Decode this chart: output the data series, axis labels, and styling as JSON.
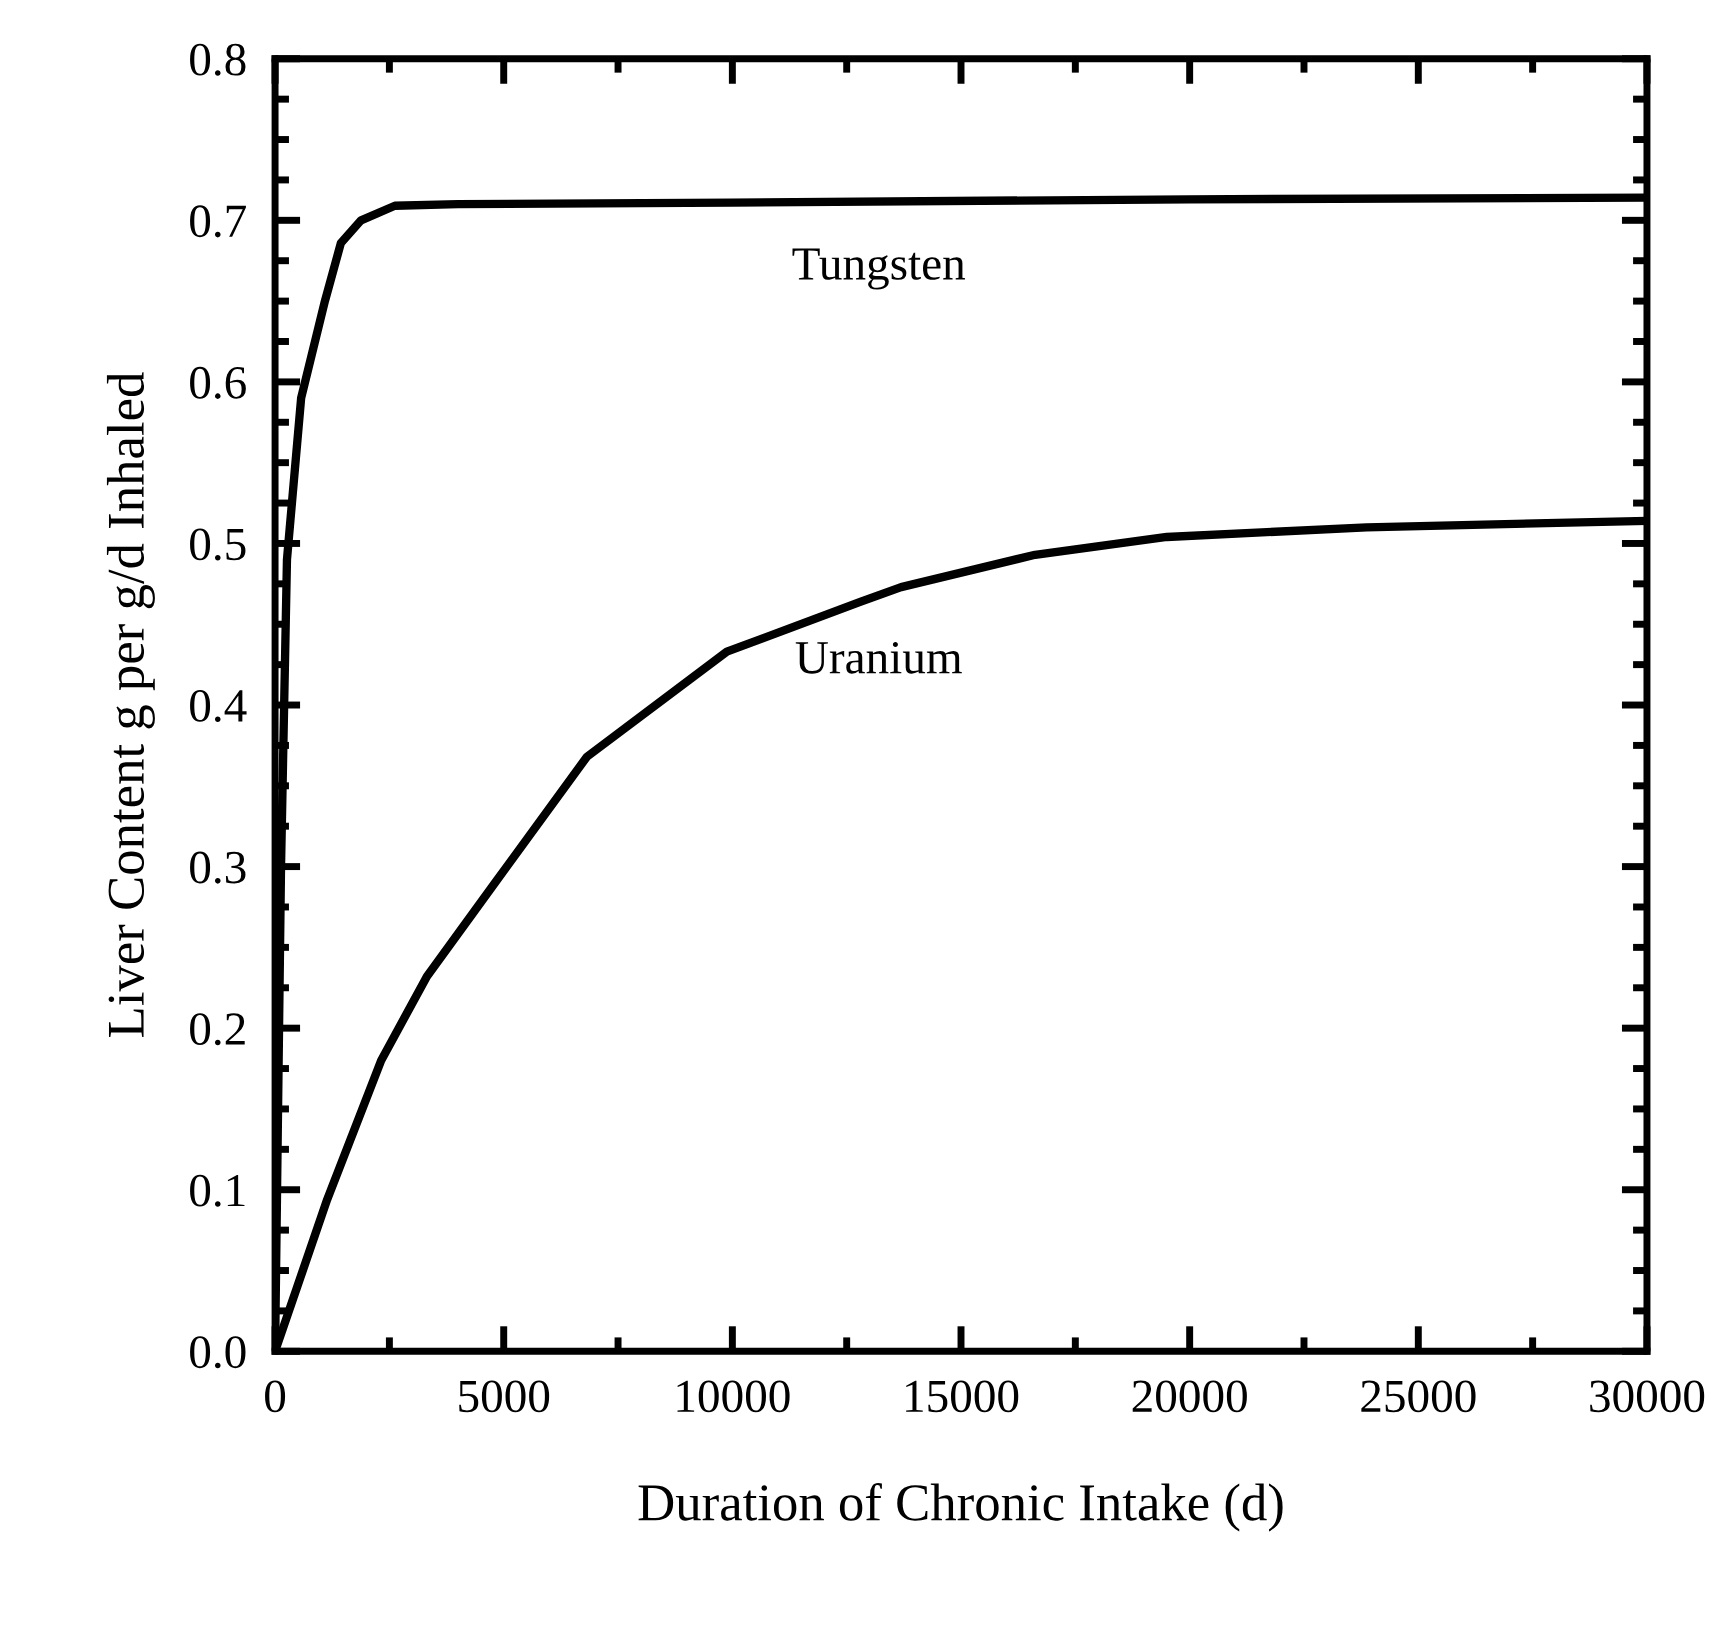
{
  "chart_data": {
    "type": "line",
    "xlabel": "Duration of Chronic Intake (d)",
    "ylabel": "Liver Content g per g/d Inhaled",
    "xlim": [
      0,
      30000
    ],
    "xticks": [
      0,
      5000,
      10000,
      15000,
      20000,
      25000,
      30000
    ],
    "ylim": [
      0.0,
      0.8
    ],
    "yticks": [
      {
        "value": 0.0,
        "label": "0.0"
      },
      0.1,
      0.2,
      0.3,
      0.4,
      0.5,
      0.6,
      0.7,
      0.8
    ],
    "grid": false,
    "legend": false,
    "marker": "none",
    "line_style": "solid",
    "series": [
      {
        "name": "Tungsten",
        "color": "#000000",
        "x": [
          0,
          130,
          260,
          570,
          1090,
          1440,
          1880,
          2620,
          4000,
          10000,
          20000,
          30000
        ],
        "values": [
          0.0,
          0.3,
          0.49,
          0.59,
          0.65,
          0.686,
          0.7,
          0.709,
          0.71,
          0.711,
          0.713,
          0.714
        ]
      },
      {
        "name": "Uranium",
        "color": "#000000",
        "x": [
          0,
          1140,
          2320,
          3320,
          4810,
          6820,
          9880,
          12810,
          13690,
          16620,
          19500,
          23870,
          30000
        ],
        "values": [
          0.0,
          0.094,
          0.18,
          0.232,
          0.29,
          0.368,
          0.433,
          0.464,
          0.473,
          0.493,
          0.504,
          0.51,
          0.514
        ]
      }
    ]
  }
}
